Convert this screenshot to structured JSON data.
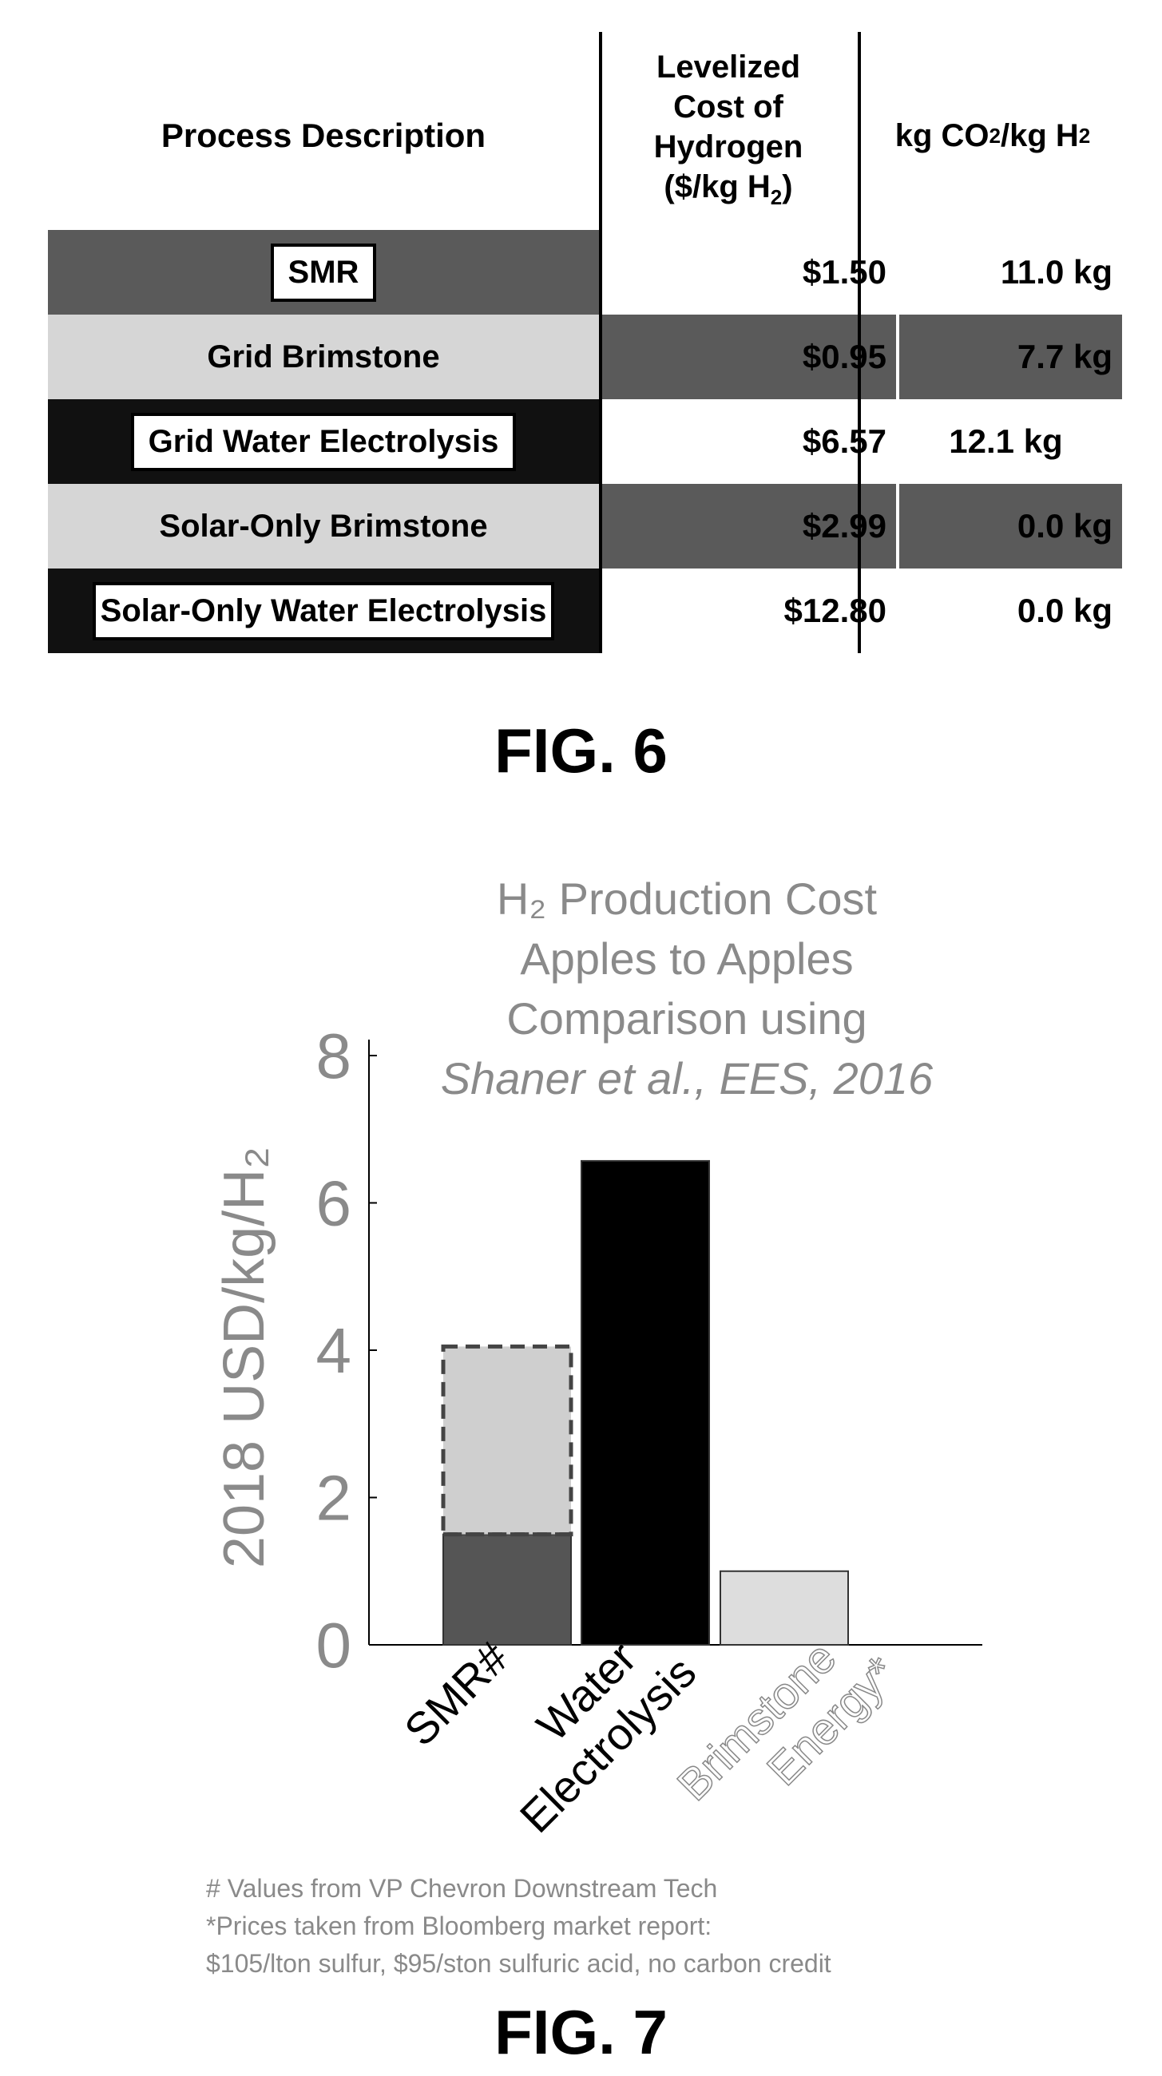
{
  "fig6": {
    "headers": {
      "process": "Process Description",
      "cost_lines": [
        "Levelized",
        "Cost of",
        "Hydrogen",
        "($/kg H",
        "2",
        ")"
      ],
      "co2_prefix": "kg CO",
      "co2_sub": "2",
      "co2_mid": "/kg H",
      "co2_sub2": "2"
    },
    "rows": [
      {
        "process": "SMR",
        "cost": "$1.50",
        "co2": "11.0 kg"
      },
      {
        "process": "Grid Brimstone",
        "cost": "$0.95",
        "co2": "7.7 kg"
      },
      {
        "process": "Grid Water Electrolysis",
        "cost": "$6.57",
        "co2": "12.1 kg"
      },
      {
        "process": "Solar-Only Brimstone",
        "cost": "$2.99",
        "co2": "0.0 kg"
      },
      {
        "process": "Solar-Only Water Electrolysis",
        "cost": "$12.80",
        "co2": "0.0 kg"
      }
    ],
    "caption": "FIG. 6",
    "colors": {
      "dark_gray": "#5a5a5a",
      "light_gray": "#d6d6d6",
      "black": "#111111",
      "white": "#ffffff"
    }
  },
  "fig7": {
    "caption": "FIG. 7",
    "notes": [
      "# Values from VP Chevron Downstream Tech",
      "*Prices taken from Bloomberg market report:",
      "$105/lton sulfur, $95/ston sulfuric acid, no carbon credit"
    ]
  },
  "chart_data": {
    "type": "bar",
    "title_lines": [
      "H₂ Production Cost",
      "Apples to Apples",
      "Comparison using",
      "Shaner et al., EES, 2016"
    ],
    "ylabel": "2018 USD/kg/H₂",
    "xlabel": "",
    "ylim": [
      0,
      8
    ],
    "yticks": [
      0,
      2,
      4,
      6,
      8
    ],
    "categories": [
      "SMR#",
      "Water Electrolysis",
      "Brimstone Energy*"
    ],
    "series": [
      {
        "values": [
          1.5,
          6.57,
          1.0
        ],
        "colors": [
          "#555555",
          "#000000",
          "#dddddd"
        ]
      },
      {
        "values": [
          2.55,
          0,
          0
        ],
        "colors": [
          "#cfcfcf",
          "#000000",
          "#dddddd"
        ],
        "style": "dashed-outline"
      }
    ],
    "grid": false
  }
}
